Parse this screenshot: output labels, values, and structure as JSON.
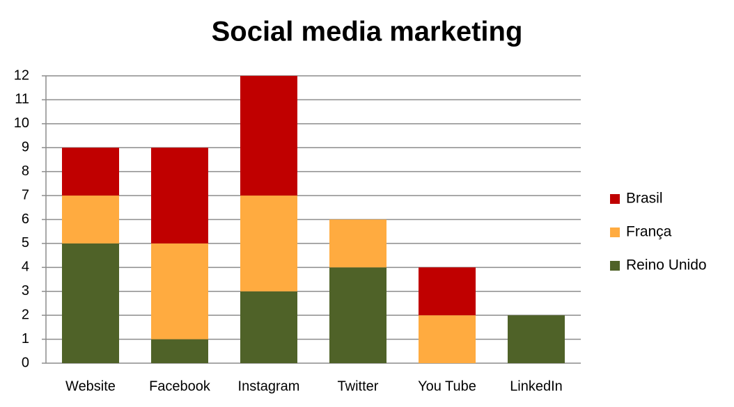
{
  "chart_data": {
    "type": "stacked_bar",
    "title": "Social media marketing",
    "categories": [
      "Website",
      "Facebook",
      "Instagram",
      "Twitter",
      "You Tube",
      "LinkedIn"
    ],
    "series": [
      {
        "name": "Reino Unido",
        "color": "#4f6228",
        "values": [
          5,
          1,
          3,
          4,
          0,
          2
        ]
      },
      {
        "name": "França",
        "color": "#ffab40",
        "values": [
          2,
          4,
          4,
          2,
          2,
          0
        ]
      },
      {
        "name": "Brasil",
        "color": "#c00000",
        "values": [
          2,
          4,
          5,
          0,
          2,
          0
        ]
      }
    ],
    "ylim": [
      0,
      12
    ],
    "yticks": [
      0,
      1,
      2,
      3,
      4,
      5,
      6,
      7,
      8,
      9,
      10,
      11,
      12
    ],
    "grid": true,
    "legend": "right"
  }
}
